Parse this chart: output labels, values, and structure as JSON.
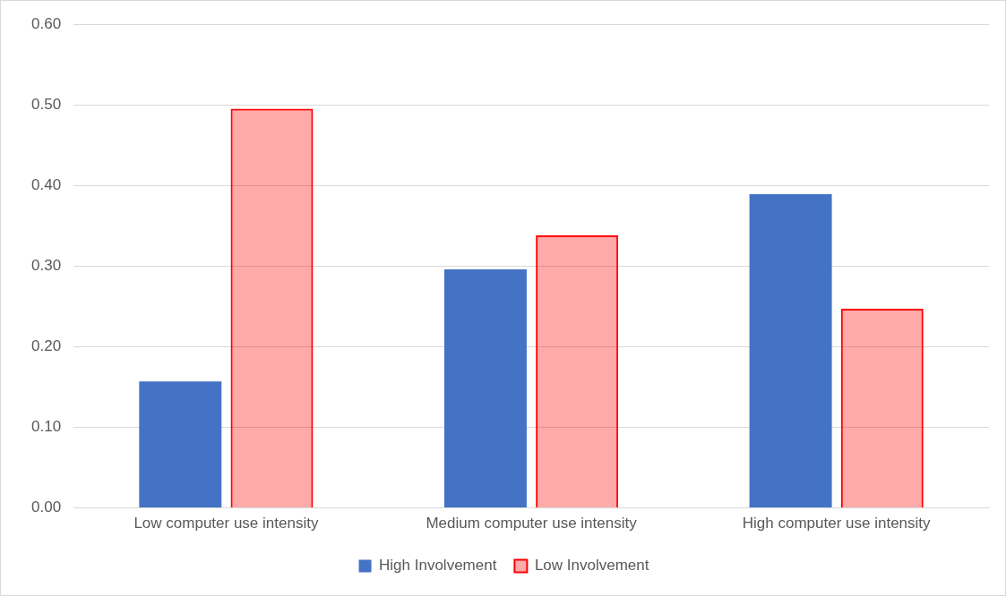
{
  "chart_data": {
    "type": "bar",
    "categories": [
      "Low computer use intensity",
      "Medium computer use intensity",
      "High computer use intensity"
    ],
    "series": [
      {
        "name": "High Involvement",
        "color": "#4472c4",
        "values": [
          0.157,
          0.296,
          0.389
        ]
      },
      {
        "name": "Low Involvement",
        "color": "#ff0000",
        "values": [
          0.495,
          0.338,
          0.247
        ]
      }
    ],
    "ylim": [
      0,
      0.6
    ],
    "yticks": [
      {
        "value": 0,
        "label": "0.00"
      },
      {
        "value": 0.1,
        "label": "0.10"
      },
      {
        "value": 0.2,
        "label": "0.20"
      },
      {
        "value": 0.3,
        "label": "0.30"
      },
      {
        "value": 0.4,
        "label": "0.40"
      },
      {
        "value": 0.5,
        "label": "0.50"
      },
      {
        "value": 0.6,
        "label": "0.60"
      }
    ],
    "grid": "y",
    "legend": "bottom"
  }
}
